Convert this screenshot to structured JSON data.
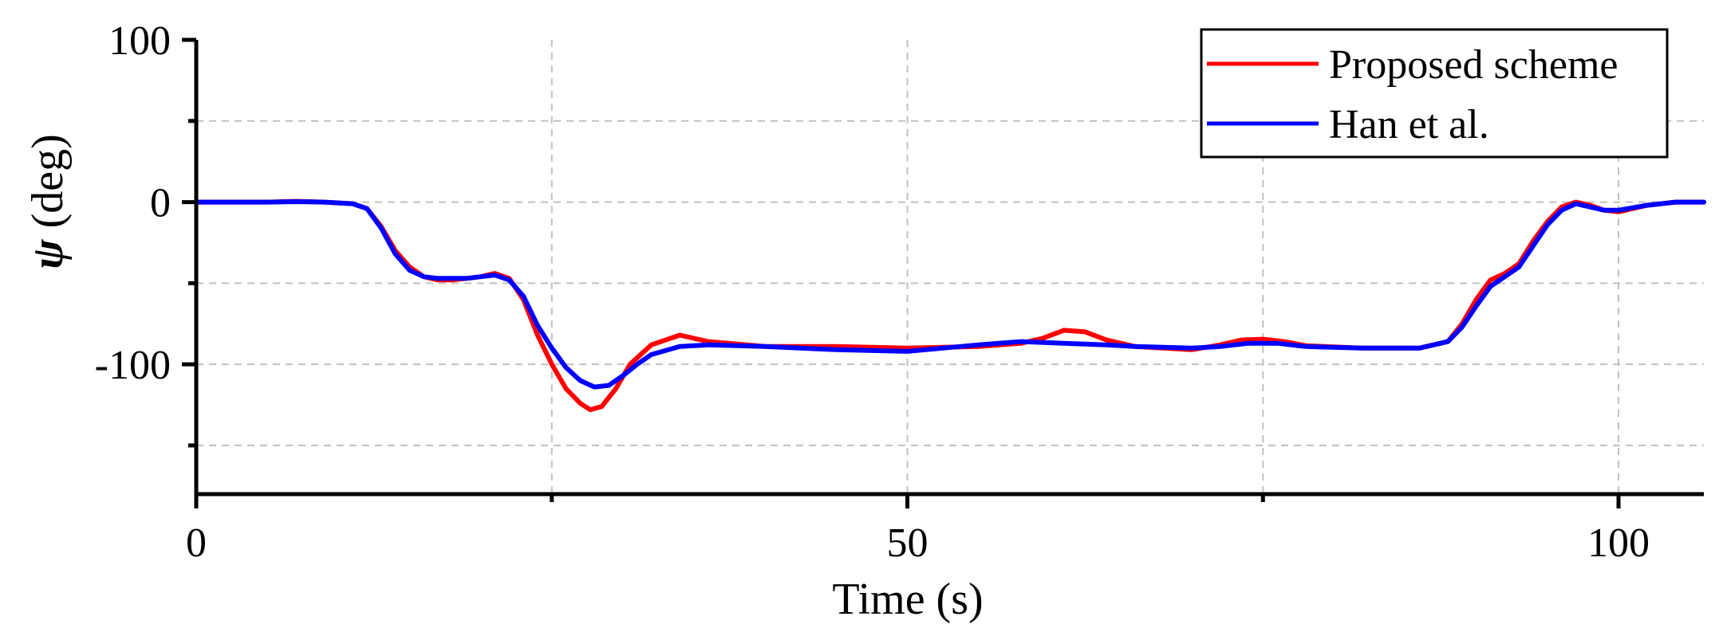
{
  "chart_data": {
    "type": "line",
    "xlabel": "Time (s)",
    "ylabel_symbol": "ψ",
    "ylabel_unit": " (deg)",
    "xlim": [
      0,
      106
    ],
    "ylim": [
      -180,
      100
    ],
    "xticks_major": [
      0,
      50,
      100
    ],
    "xticks_minor": [
      25,
      75
    ],
    "yticks_major": [
      100,
      0,
      -100
    ],
    "yticks_minor": [
      50,
      -50,
      -150
    ],
    "x_tick_labels": [
      "0",
      "50",
      "100"
    ],
    "y_tick_labels": [
      "100",
      "0",
      "-100"
    ],
    "grid": true,
    "legend_position": "top-right",
    "series": [
      {
        "name": "Proposed scheme",
        "color": "#ff0000",
        "points": [
          [
            0,
            0
          ],
          [
            5,
            0
          ],
          [
            7,
            0.5
          ],
          [
            9,
            0
          ],
          [
            11,
            -1
          ],
          [
            12,
            -4
          ],
          [
            13,
            -15
          ],
          [
            14,
            -30
          ],
          [
            15,
            -40
          ],
          [
            16,
            -46
          ],
          [
            17,
            -48
          ],
          [
            18,
            -48
          ],
          [
            19,
            -47
          ],
          [
            20,
            -46
          ],
          [
            21,
            -44
          ],
          [
            22,
            -47
          ],
          [
            23,
            -60
          ],
          [
            24,
            -82
          ],
          [
            25,
            -100
          ],
          [
            26,
            -115
          ],
          [
            27,
            -124
          ],
          [
            27.7,
            -128
          ],
          [
            28.5,
            -126
          ],
          [
            29.5,
            -115
          ],
          [
            30.5,
            -100
          ],
          [
            32,
            -88
          ],
          [
            34,
            -82
          ],
          [
            36,
            -86
          ],
          [
            40,
            -89
          ],
          [
            45,
            -89
          ],
          [
            50,
            -90
          ],
          [
            55,
            -89
          ],
          [
            58,
            -87
          ],
          [
            59.5,
            -84
          ],
          [
            61,
            -79
          ],
          [
            62.5,
            -80
          ],
          [
            64,
            -85
          ],
          [
            66,
            -89
          ],
          [
            70,
            -91
          ],
          [
            72,
            -88
          ],
          [
            73.5,
            -85
          ],
          [
            75,
            -84.5
          ],
          [
            76.5,
            -86
          ],
          [
            78,
            -88.5
          ],
          [
            82,
            -90
          ],
          [
            86,
            -90
          ],
          [
            88,
            -86
          ],
          [
            89,
            -75
          ],
          [
            90,
            -60
          ],
          [
            91,
            -48
          ],
          [
            92,
            -44
          ],
          [
            93,
            -38
          ],
          [
            94,
            -24
          ],
          [
            95,
            -12
          ],
          [
            96,
            -3
          ],
          [
            97,
            0
          ],
          [
            98,
            -2
          ],
          [
            99,
            -5
          ],
          [
            100,
            -6
          ],
          [
            102,
            -2
          ],
          [
            104,
            0
          ],
          [
            106,
            0
          ]
        ]
      },
      {
        "name": "Han et al.",
        "color": "#0000ff",
        "points": [
          [
            0,
            0
          ],
          [
            5,
            0
          ],
          [
            7,
            0.3
          ],
          [
            9,
            0
          ],
          [
            11,
            -1
          ],
          [
            12,
            -4
          ],
          [
            13,
            -16
          ],
          [
            14,
            -32
          ],
          [
            15,
            -42
          ],
          [
            16,
            -46
          ],
          [
            17,
            -47
          ],
          [
            18,
            -47
          ],
          [
            19,
            -47
          ],
          [
            20,
            -46
          ],
          [
            21,
            -45
          ],
          [
            22,
            -48
          ],
          [
            23,
            -58
          ],
          [
            24,
            -76
          ],
          [
            25,
            -90
          ],
          [
            26,
            -102
          ],
          [
            27,
            -110
          ],
          [
            28,
            -114
          ],
          [
            29,
            -113
          ],
          [
            30,
            -107
          ],
          [
            31,
            -100
          ],
          [
            32,
            -94
          ],
          [
            34,
            -89
          ],
          [
            36,
            -88
          ],
          [
            40,
            -89
          ],
          [
            45,
            -91
          ],
          [
            50,
            -92
          ],
          [
            55,
            -88
          ],
          [
            58,
            -86
          ],
          [
            61,
            -87
          ],
          [
            64,
            -88
          ],
          [
            66,
            -89
          ],
          [
            70,
            -90
          ],
          [
            72,
            -89
          ],
          [
            74,
            -87
          ],
          [
            76,
            -87
          ],
          [
            78,
            -89
          ],
          [
            82,
            -90
          ],
          [
            86,
            -90
          ],
          [
            88,
            -86
          ],
          [
            89,
            -77
          ],
          [
            90,
            -64
          ],
          [
            91,
            -52
          ],
          [
            92,
            -46
          ],
          [
            93,
            -40
          ],
          [
            94,
            -27
          ],
          [
            95,
            -14
          ],
          [
            96,
            -5
          ],
          [
            97,
            -1
          ],
          [
            98,
            -3
          ],
          [
            99,
            -5
          ],
          [
            100,
            -5
          ],
          [
            102,
            -2
          ],
          [
            104,
            0
          ],
          [
            106,
            0
          ]
        ]
      }
    ]
  }
}
